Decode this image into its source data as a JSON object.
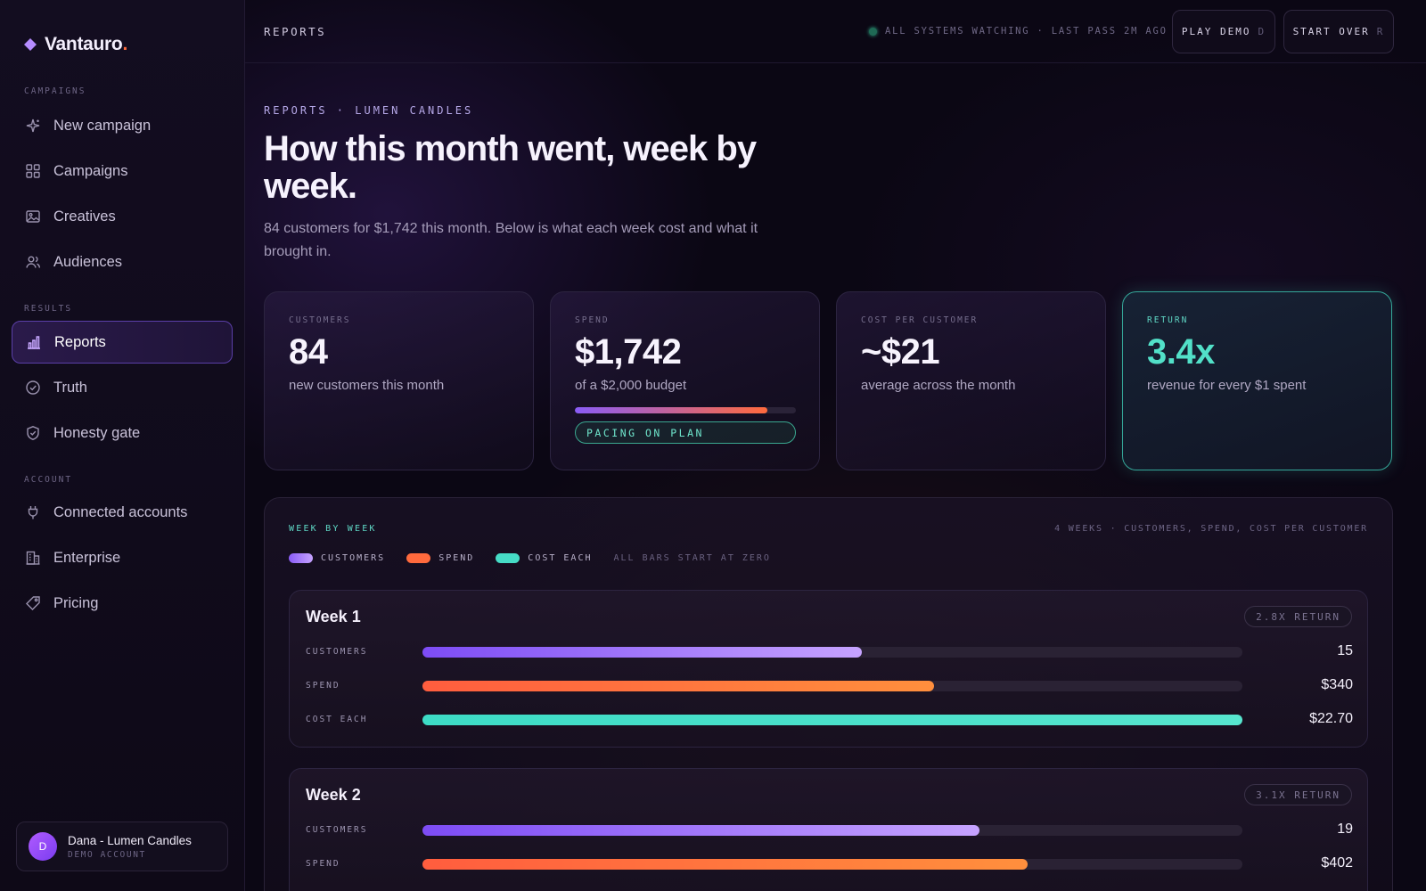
{
  "brand": {
    "name": "Vantauro",
    "dot": "."
  },
  "sidebar": {
    "sections": [
      {
        "label": "CAMPAIGNS"
      },
      {
        "label": "RESULTS"
      },
      {
        "label": "ACCOUNT"
      }
    ],
    "items": [
      {
        "label": "New campaign",
        "icon": "sparkle-icon"
      },
      {
        "label": "Campaigns",
        "icon": "grid-icon"
      },
      {
        "label": "Creatives",
        "icon": "image-icon"
      },
      {
        "label": "Audiences",
        "icon": "users-icon"
      },
      {
        "label": "Reports",
        "icon": "bar-chart-icon",
        "active": true
      },
      {
        "label": "Truth",
        "icon": "check-circle-icon"
      },
      {
        "label": "Honesty gate",
        "icon": "shield-check-icon"
      },
      {
        "label": "Connected accounts",
        "icon": "plug-icon"
      },
      {
        "label": "Enterprise",
        "icon": "building-icon"
      },
      {
        "label": "Pricing",
        "icon": "tag-icon"
      }
    ],
    "account": {
      "initial": "D",
      "name": "Dana - Lumen Candles",
      "sub": "DEMO ACCOUNT"
    }
  },
  "topbar": {
    "title": "REPORTS",
    "status": "ALL SYSTEMS WATCHING · LAST PASS 2M AGO",
    "play_demo": {
      "label": "PLAY DEMO",
      "key": "D"
    },
    "start_over": {
      "label": "START OVER",
      "key": "R"
    }
  },
  "header": {
    "eyebrow": "REPORTS · LUMEN CANDLES",
    "headline": "How this month went, week by week.",
    "subtext": "84 customers for $1,742 this month. Below is what each week cost and what it brought in."
  },
  "stats": [
    {
      "label": "CUSTOMERS",
      "value": "84",
      "desc": "new customers this month"
    },
    {
      "label": "SPEND",
      "value": "$1,742",
      "desc": "of a $2,000 budget",
      "budget_fraction": 0.871,
      "pill": "PACING ON PLAN"
    },
    {
      "label": "COST PER CUSTOMER",
      "value": "~$21",
      "desc": "average across the month"
    },
    {
      "label": "RETURN",
      "value": "3.4x",
      "desc": "revenue for every $1 spent"
    }
  ],
  "colors": {
    "customers": "#8a5cf6",
    "spend": "#ff6a3d",
    "cost": "#46dcc6",
    "accent_teal": "#52e0c8"
  },
  "panel": {
    "title": "WEEK BY WEEK",
    "meta": "4 WEEKS · CUSTOMERS, SPEND, COST PER CUSTOMER",
    "legend": [
      {
        "label": "CUSTOMERS"
      },
      {
        "label": "SPEND"
      },
      {
        "label": "COST EACH"
      }
    ],
    "legend_note": "ALL BARS START AT ZERO",
    "metric_labels": {
      "customers": "CUSTOMERS",
      "spend": "SPEND",
      "cost": "COST EACH"
    },
    "weeks": [
      {
        "title": "Week 1",
        "return": "2.8X RETURN",
        "customers": {
          "value": 15,
          "display": "15",
          "fraction": 0.536
        },
        "spend": {
          "value": 340,
          "display": "$340",
          "fraction": 0.624
        },
        "cost": {
          "value": 22.7,
          "display": "$22.70",
          "fraction": 1.0
        }
      },
      {
        "title": "Week 2",
        "return": "3.1X RETURN",
        "customers": {
          "value": 19,
          "display": "19",
          "fraction": 0.679
        },
        "spend": {
          "value": 402,
          "display": "$402",
          "fraction": 0.738
        }
      }
    ]
  }
}
